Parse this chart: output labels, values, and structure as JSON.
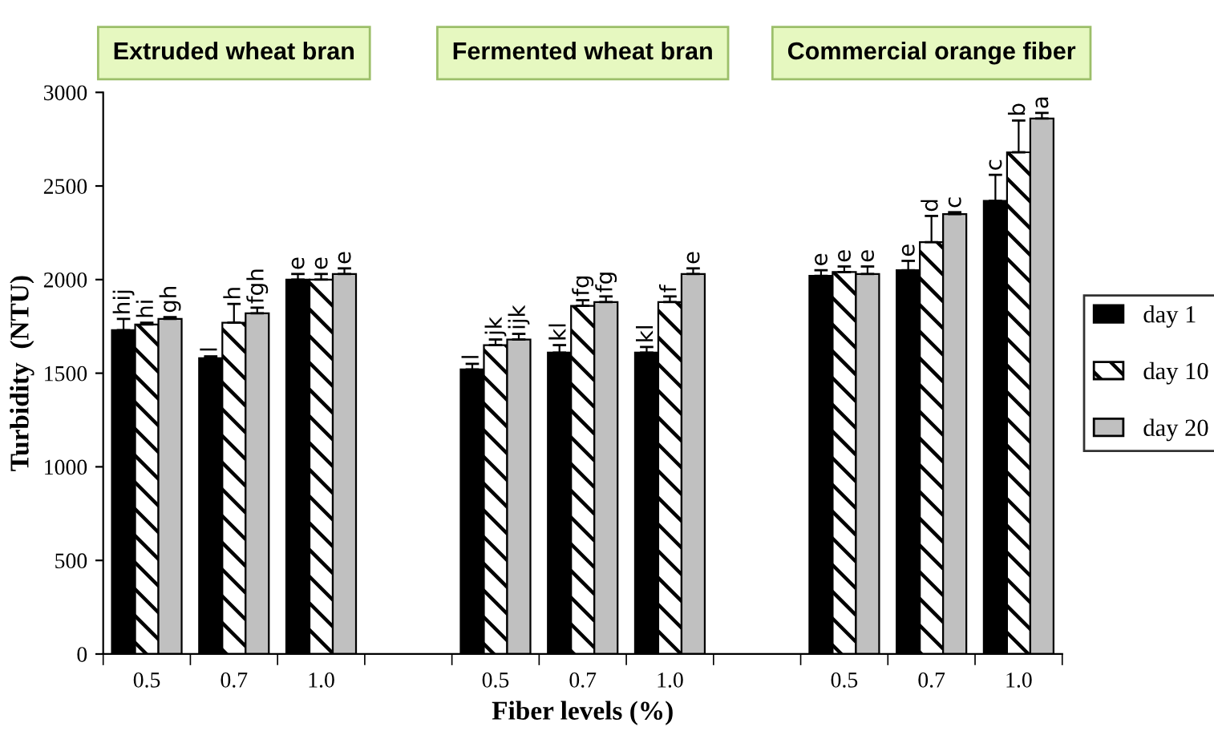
{
  "chart_data": {
    "type": "bar",
    "xlabel": "Fiber levels (%)",
    "ylabel": "Turbidity  (NTU)",
    "categories": [
      "0.5",
      "0.7",
      "1.0",
      null,
      "0.5",
      "0.7",
      "1.0",
      null,
      "0.5",
      "0.7",
      "1.0"
    ],
    "series": [
      {
        "name": "day 1",
        "color": "#000000",
        "values": [
          1730,
          1580,
          2000,
          null,
          1520,
          1610,
          1610,
          null,
          2020,
          2050,
          2420
        ],
        "errors": [
          60,
          10,
          30,
          null,
          30,
          40,
          30,
          null,
          30,
          50,
          140
        ],
        "value_labels": [
          "hij",
          "l",
          "e",
          null,
          "l",
          "kl",
          "kl",
          null,
          "e",
          "e",
          "c"
        ]
      },
      {
        "name": "day 10",
        "color": "#ffffff",
        "values": [
          1760,
          1770,
          2000,
          null,
          1650,
          1860,
          1880,
          null,
          2040,
          2200,
          2680
        ],
        "errors": [
          10,
          100,
          30,
          null,
          30,
          30,
          30,
          null,
          30,
          140,
          170
        ],
        "value_labels": [
          "hi",
          "h",
          "e",
          null,
          "jk",
          "fg",
          "f",
          null,
          "e",
          "d",
          "b"
        ]
      },
      {
        "name": "day 20",
        "color": "#c0c0c0",
        "values": [
          1790,
          1820,
          2030,
          null,
          1680,
          1880,
          2030,
          null,
          2030,
          2350,
          2860
        ],
        "errors": [
          10,
          30,
          30,
          null,
          30,
          30,
          30,
          null,
          40,
          10,
          30
        ],
        "value_labels": [
          "gh",
          "fgh",
          "e",
          null,
          "ijk",
          "fg",
          "e",
          null,
          "e",
          "c",
          "a"
        ]
      }
    ],
    "annotations": [
      "Extruded wheat bran",
      "Fermented wheat bran",
      "Commercial orange fiber"
    ],
    "ylim": [
      0,
      3000
    ],
    "yticks": [
      0,
      500,
      1000,
      1500,
      2000,
      2500,
      3000
    ],
    "grid": false,
    "legend": "right"
  }
}
